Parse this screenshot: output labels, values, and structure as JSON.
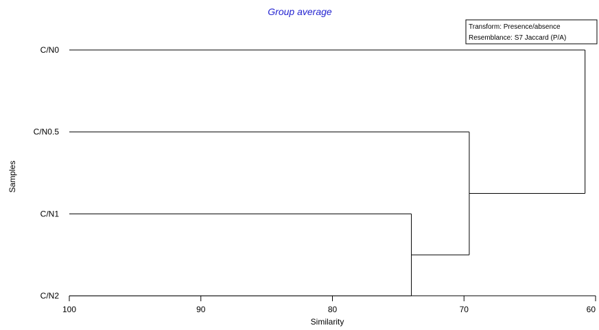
{
  "chart_data": {
    "type": "dendrogram",
    "title": "Group average",
    "xlabel": "Similarity",
    "ylabel": "Samples",
    "xlim": [
      100,
      60
    ],
    "x_ticks": [
      "100",
      "90",
      "80",
      "70",
      "60"
    ],
    "samples": [
      "C/N0",
      "C/N0.5",
      "C/N1",
      "C/N2"
    ],
    "merges": [
      {
        "left": "C/N1",
        "right": "C/N2",
        "similarity": 74
      },
      {
        "left": "C/N0.5",
        "right": "C/N1+C/N2",
        "similarity": 69.6
      },
      {
        "left": "C/N0",
        "right": "C/N0.5+C/N1+C/N2",
        "similarity": 60.8
      }
    ],
    "legend": {
      "transform": "Transform: Presence/absence",
      "resemblance": "Resemblance: S7 Jaccard (P/A)"
    },
    "grid": false,
    "legend_position": "top-right"
  }
}
